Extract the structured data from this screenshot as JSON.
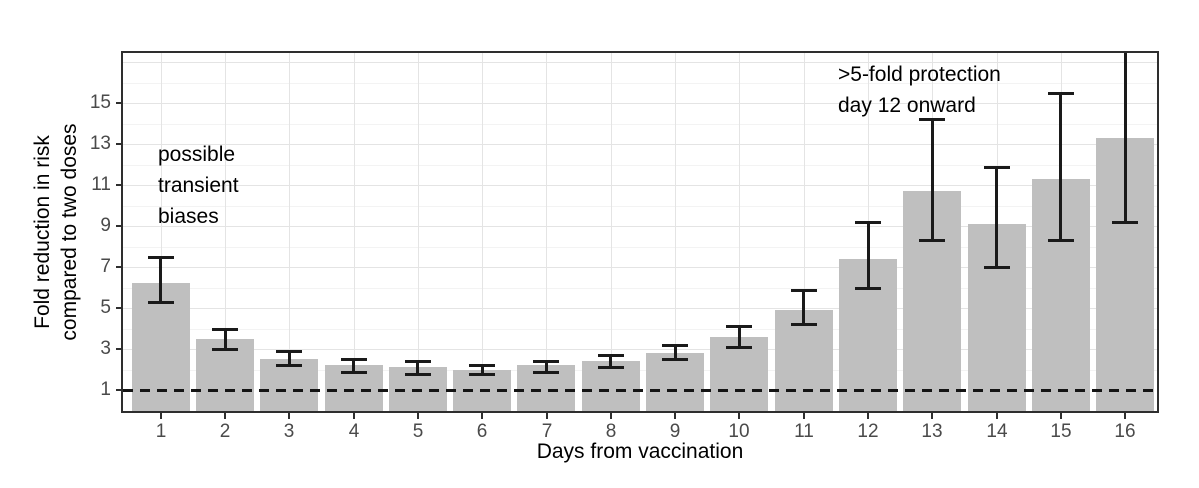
{
  "chart_data": {
    "type": "bar",
    "title": "",
    "xlabel": "Days from vaccination",
    "ylabel_lines": [
      "Fold reduction in risk",
      "compared to two doses"
    ],
    "categories": [
      "1",
      "2",
      "3",
      "4",
      "5",
      "6",
      "7",
      "8",
      "9",
      "10",
      "11",
      "12",
      "13",
      "14",
      "15",
      "16"
    ],
    "values": [
      6.2,
      3.5,
      2.5,
      2.2,
      2.1,
      2.0,
      2.2,
      2.4,
      2.8,
      3.6,
      4.9,
      7.4,
      10.7,
      9.1,
      11.3,
      13.3
    ],
    "error_low": [
      5.3,
      3.0,
      2.2,
      1.9,
      1.8,
      1.8,
      1.9,
      2.1,
      2.5,
      3.1,
      4.2,
      6.0,
      8.3,
      7.0,
      8.3,
      9.2
    ],
    "error_high": [
      7.5,
      4.0,
      2.9,
      2.5,
      2.4,
      2.2,
      2.4,
      2.7,
      3.2,
      4.1,
      5.9,
      9.2,
      14.2,
      11.9,
      15.5,
      17.6
    ],
    "error_high_clipped": [
      false,
      false,
      false,
      false,
      false,
      false,
      false,
      false,
      false,
      false,
      false,
      false,
      false,
      false,
      false,
      true
    ],
    "yticks": [
      "1",
      "3",
      "5",
      "7",
      "9",
      "11",
      "13",
      "15"
    ],
    "ylim": [
      -0.1,
      17.6
    ],
    "grid": true,
    "legend": "none",
    "reference_line": {
      "y": 1,
      "style": "dashed"
    },
    "annotations": [
      {
        "id": "transient-biases",
        "lines": [
          "possible",
          "transient",
          "biases"
        ]
      },
      {
        "id": "protection",
        "lines": [
          ">5-fold protection",
          "day 12 onward"
        ]
      }
    ],
    "colors": {
      "bar_fill": "#bfbfbf",
      "error_bar": "#1a1a1a",
      "reference_line": "#141414",
      "grid_major": "#e4e4e4",
      "grid_minor": "#f3f3f3",
      "axis_text": "#4a4a4a",
      "axis_title": "#000000",
      "panel_border": "#2e2e2e",
      "background": "#ffffff"
    }
  }
}
